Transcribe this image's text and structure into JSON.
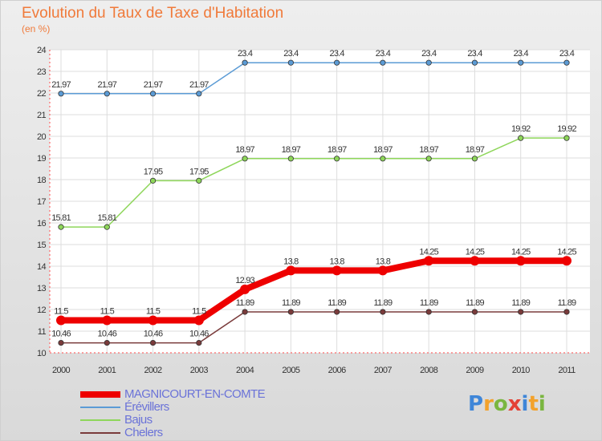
{
  "title": "Evolution du Taux de Taxe d'Habitation",
  "subtitle": "(en %)",
  "logo": {
    "letters": [
      "P",
      "r",
      "o",
      "x",
      "i",
      "t",
      "i"
    ],
    "colors": [
      "#3f86d8",
      "#f3a22c",
      "#7ab640",
      "#e44236",
      "#3f86d8",
      "#f3a22c",
      "#7ab640"
    ]
  },
  "chart_data": {
    "type": "line",
    "title": "Evolution du Taux de Taxe d'Habitation",
    "ylabel": "(en %)",
    "xlabel": "",
    "x": [
      "2000",
      "2001",
      "2002",
      "2003",
      "2004",
      "2005",
      "2006",
      "2007",
      "2008",
      "2009",
      "2010",
      "2011"
    ],
    "ylim": [
      10,
      24
    ],
    "yticks": [
      "10",
      "11",
      "12",
      "13",
      "14",
      "15",
      "16",
      "17",
      "18",
      "19",
      "20",
      "21",
      "22",
      "23",
      "24"
    ],
    "grid": true,
    "legend_position": "bottom-left",
    "series": [
      {
        "name": "MAGNICOURT-EN-COMTE",
        "color": "#ee0000",
        "thick": true,
        "values": [
          11.5,
          11.5,
          11.5,
          11.5,
          12.93,
          13.8,
          13.8,
          13.8,
          14.25,
          14.25,
          14.25,
          14.25
        ],
        "labels": [
          "11.5",
          "11.5",
          "11.5",
          "11.5",
          "12.93",
          "13.8",
          "13.8",
          "13.8",
          "14.25",
          "14.25",
          "14.25",
          "14.25"
        ]
      },
      {
        "name": "Érévillers",
        "color": "#5b9bd5",
        "thick": false,
        "values": [
          21.97,
          21.97,
          21.97,
          21.97,
          23.4,
          23.4,
          23.4,
          23.4,
          23.4,
          23.4,
          23.4,
          23.4
        ],
        "labels": [
          "21.97",
          "21.97",
          "21.97",
          "21.97",
          "23.4",
          "23.4",
          "23.4",
          "23.4",
          "23.4",
          "23.4",
          "23.4",
          "23.4"
        ]
      },
      {
        "name": "Bajus",
        "color": "#8ed65a",
        "thick": false,
        "values": [
          15.81,
          15.81,
          17.95,
          17.95,
          18.97,
          18.97,
          18.97,
          18.97,
          18.97,
          18.97,
          19.92,
          19.92
        ],
        "labels": [
          "15.81",
          "15.81",
          "17.95",
          "17.95",
          "18.97",
          "18.97",
          "18.97",
          "18.97",
          "18.97",
          "18.97",
          "19.92",
          "19.92"
        ]
      },
      {
        "name": "Chelers",
        "color": "#7a3b3b",
        "thick": false,
        "values": [
          10.46,
          10.46,
          10.46,
          10.46,
          11.89,
          11.89,
          11.89,
          11.89,
          11.89,
          11.89,
          11.89,
          11.89
        ],
        "labels": [
          "10.46",
          "10.46",
          "10.46",
          "10.46",
          "11.89",
          "11.89",
          "11.89",
          "11.89",
          "11.89",
          "11.89",
          "11.89",
          "11.89"
        ]
      }
    ]
  }
}
